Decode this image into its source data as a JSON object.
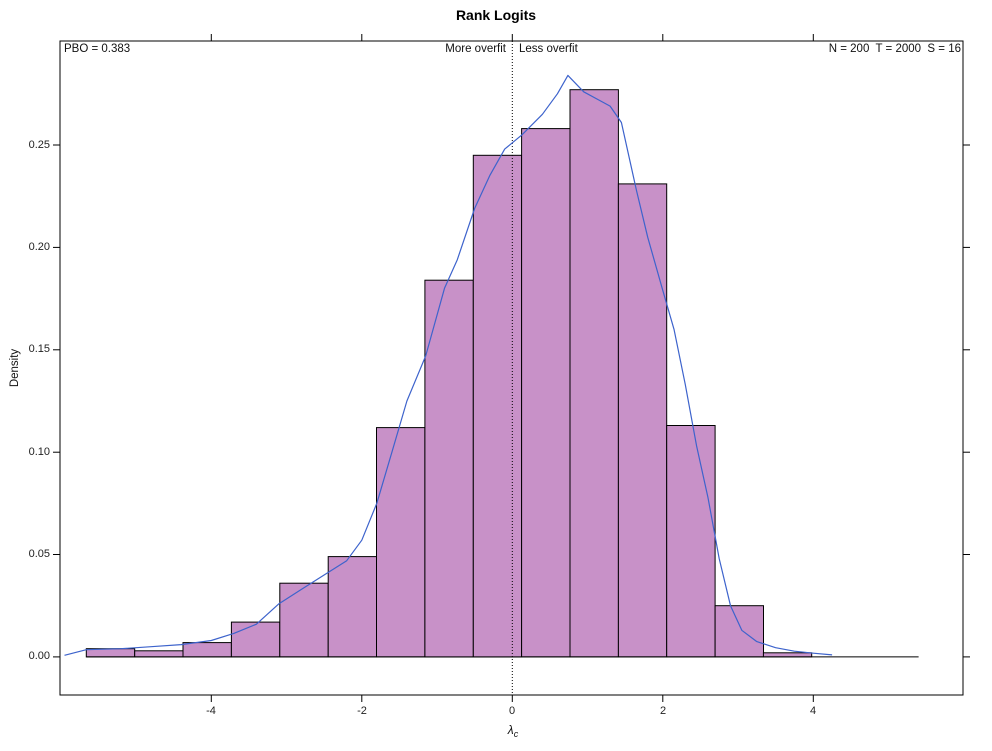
{
  "title": "Rank Logits",
  "annotations": {
    "pbo": "PBO = 0.383",
    "more_overfit": "More overfit",
    "less_overfit": "Less overfit",
    "params": "N = 200  T = 2000  S = 16"
  },
  "chart_data": {
    "type": "bar",
    "subtype": "histogram-with-density-curve",
    "title": "Rank Logits",
    "xlabel_base": "λ",
    "xlabel_sub": "c",
    "ylabel": "Density",
    "xlim": [
      -6.01,
      5.99
    ],
    "ylim": [
      -0.0186,
      0.3008
    ],
    "grid": false,
    "x_ticks": [
      {
        "v": -4,
        "label": "-4"
      },
      {
        "v": -2,
        "label": "-2"
      },
      {
        "v": 0,
        "label": "0"
      },
      {
        "v": 2,
        "label": "2"
      },
      {
        "v": 4,
        "label": "4"
      }
    ],
    "y_ticks": [
      {
        "v": 0.0,
        "label": "0.00"
      },
      {
        "v": 0.05,
        "label": "0.05"
      },
      {
        "v": 0.1,
        "label": "0.10"
      },
      {
        "v": 0.15,
        "label": "0.15"
      },
      {
        "v": 0.2,
        "label": "0.20"
      },
      {
        "v": 0.25,
        "label": "0.25"
      }
    ],
    "bin_edges": [
      -5.66,
      -5.017,
      -4.375,
      -3.732,
      -3.089,
      -2.446,
      -1.804,
      -1.161,
      -0.518,
      0.124,
      0.767,
      1.41,
      2.052,
      2.695,
      3.338,
      3.98
    ],
    "densities": [
      0.004,
      0.003,
      0.007,
      0.017,
      0.036,
      0.049,
      0.112,
      0.184,
      0.245,
      0.258,
      0.277,
      0.231,
      0.113,
      0.025,
      0.002
    ],
    "baseline_end": 5.4,
    "vline_x": 0,
    "density_curve": [
      [
        -5.95,
        0.0008
      ],
      [
        -5.66,
        0.0035
      ],
      [
        -5.2,
        0.004
      ],
      [
        -4.8,
        0.005
      ],
      [
        -4.4,
        0.006
      ],
      [
        -4.0,
        0.008
      ],
      [
        -3.7,
        0.0115
      ],
      [
        -3.4,
        0.016
      ],
      [
        -3.1,
        0.026
      ],
      [
        -2.8,
        0.033
      ],
      [
        -2.5,
        0.04
      ],
      [
        -2.2,
        0.047
      ],
      [
        -2.0,
        0.057
      ],
      [
        -1.8,
        0.075
      ],
      [
        -1.6,
        0.1
      ],
      [
        -1.4,
        0.125
      ],
      [
        -1.15,
        0.147
      ],
      [
        -0.9,
        0.18
      ],
      [
        -0.73,
        0.194
      ],
      [
        -0.5,
        0.219
      ],
      [
        -0.3,
        0.235
      ],
      [
        -0.1,
        0.248
      ],
      [
        0.13,
        0.255
      ],
      [
        0.4,
        0.265
      ],
      [
        0.6,
        0.275
      ],
      [
        0.74,
        0.284
      ],
      [
        0.95,
        0.276
      ],
      [
        1.15,
        0.272
      ],
      [
        1.3,
        0.269
      ],
      [
        1.45,
        0.261
      ],
      [
        1.65,
        0.228
      ],
      [
        1.8,
        0.205
      ],
      [
        2.0,
        0.179
      ],
      [
        2.15,
        0.16
      ],
      [
        2.3,
        0.133
      ],
      [
        2.45,
        0.103
      ],
      [
        2.6,
        0.078
      ],
      [
        2.75,
        0.048
      ],
      [
        2.9,
        0.025
      ],
      [
        3.05,
        0.013
      ],
      [
        3.25,
        0.0075
      ],
      [
        3.5,
        0.0045
      ],
      [
        3.75,
        0.0028
      ],
      [
        4.0,
        0.0018
      ],
      [
        4.25,
        0.001
      ]
    ],
    "colors": {
      "bar_fill": "#C891C8",
      "bar_border": "#000000",
      "curve": "#3D63CC",
      "vline": "#000000",
      "axis": "#000000"
    }
  }
}
